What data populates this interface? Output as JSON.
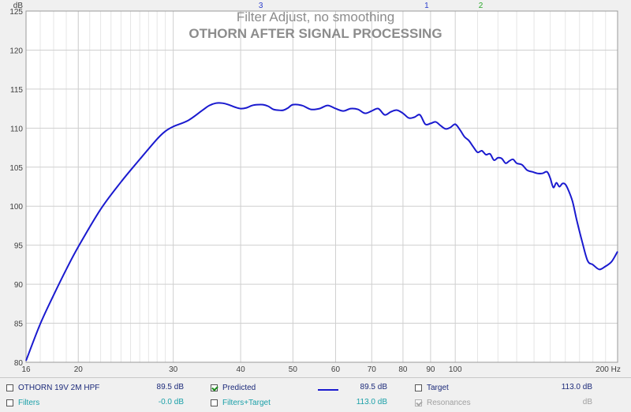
{
  "chart_data": {
    "type": "line",
    "title": "Filter Adjust, no smoothing",
    "subtitle": "OTHORN AFTER SIGNAL PROCESSING",
    "y_unit": "dB",
    "x_unit": "Hz",
    "xlim": [
      16,
      200
    ],
    "ylim": [
      80,
      125
    ],
    "x_scale": "log",
    "grid": true,
    "legend_placement": "bottom",
    "x_ticks": [
      16,
      20,
      30,
      40,
      50,
      60,
      70,
      80,
      90,
      100,
      200
    ],
    "x_tick_labels": [
      "16",
      "20",
      "30",
      "40",
      "50",
      "60",
      "70",
      "80",
      "90",
      "100",
      "200 Hz"
    ],
    "y_ticks": [
      80,
      85,
      90,
      95,
      100,
      105,
      110,
      115,
      120,
      125
    ],
    "y_tick_labels": [
      "80",
      "85",
      "90",
      "95",
      "100",
      "105",
      "110",
      "115",
      "120",
      "125"
    ],
    "markers": [
      {
        "label": "3",
        "x": 43.6,
        "color": "#2a3ccc"
      },
      {
        "label": "1",
        "x": 88.5,
        "color": "#2a3ccc"
      },
      {
        "label": "2",
        "x": 111.5,
        "color": "#2aa82a"
      }
    ],
    "series": [
      {
        "name": "Predicted",
        "color": "#1a1acf",
        "x": [
          16,
          17,
          18,
          19,
          20,
          22,
          24,
          26,
          28,
          29,
          30,
          32,
          34,
          35,
          36,
          37,
          38,
          39,
          40,
          41,
          42,
          43,
          44,
          45,
          46,
          47,
          48,
          49,
          50,
          52,
          54,
          56,
          58,
          60,
          62,
          64,
          66,
          68,
          70,
          72,
          74,
          76,
          78,
          80,
          82,
          84,
          86,
          88,
          90,
          92,
          94,
          96,
          98,
          100,
          102,
          104,
          106,
          108,
          110,
          112,
          114,
          116,
          118,
          120,
          122,
          124,
          126,
          128,
          130,
          133,
          136,
          139,
          142,
          145,
          148,
          150,
          152,
          154,
          156,
          158,
          160,
          162,
          165,
          168,
          172,
          176,
          180,
          185,
          190,
          195,
          200
        ],
        "y": [
          80.2,
          84.9,
          88.6,
          91.9,
          94.8,
          99.6,
          103.1,
          106.0,
          108.6,
          109.6,
          110.2,
          111.0,
          112.3,
          112.9,
          113.2,
          113.2,
          113.0,
          112.7,
          112.5,
          112.6,
          112.9,
          113.0,
          113.0,
          112.8,
          112.4,
          112.3,
          112.3,
          112.6,
          113.0,
          112.9,
          112.4,
          112.5,
          112.9,
          112.5,
          112.2,
          112.5,
          112.4,
          111.9,
          112.2,
          112.5,
          111.7,
          112.1,
          112.3,
          111.9,
          111.3,
          111.4,
          111.7,
          110.5,
          110.6,
          110.8,
          110.3,
          109.9,
          110.1,
          110.5,
          109.8,
          108.9,
          108.4,
          107.6,
          106.9,
          107.1,
          106.6,
          106.7,
          105.9,
          106.2,
          106.1,
          105.5,
          105.8,
          106.0,
          105.5,
          105.3,
          104.6,
          104.4,
          104.2,
          104.2,
          104.4,
          103.6,
          102.4,
          103.0,
          102.5,
          102.9,
          102.8,
          102.1,
          100.6,
          98.2,
          95.4,
          93.0,
          92.5,
          91.9,
          92.3,
          92.9,
          94.2
        ]
      }
    ]
  },
  "legend": {
    "row1": [
      {
        "label": "OTHORN 19V 2M HPF",
        "value": "89.5 dB",
        "checked": false
      },
      {
        "label": "Predicted",
        "value": "89.5 dB",
        "checked": true
      },
      {
        "label": "Target",
        "value": "113.0 dB",
        "checked": false
      }
    ],
    "row2": [
      {
        "label": "Filters",
        "value": "-0.0 dB",
        "checked": false
      },
      {
        "label": "Filters+Target",
        "value": "113.0 dB",
        "checked": false
      },
      {
        "label": "Resonances",
        "value": "dB",
        "checked": true
      }
    ]
  },
  "colors": {
    "plot_background": "#ffffff",
    "grid": "#cfcfcf",
    "title": "#8c8c8c",
    "predicted_line": "#1a1acf",
    "label_navy": "#1c2a7a",
    "label_teal": "#1aa0a8",
    "label_disabled": "#a0a0a0"
  }
}
